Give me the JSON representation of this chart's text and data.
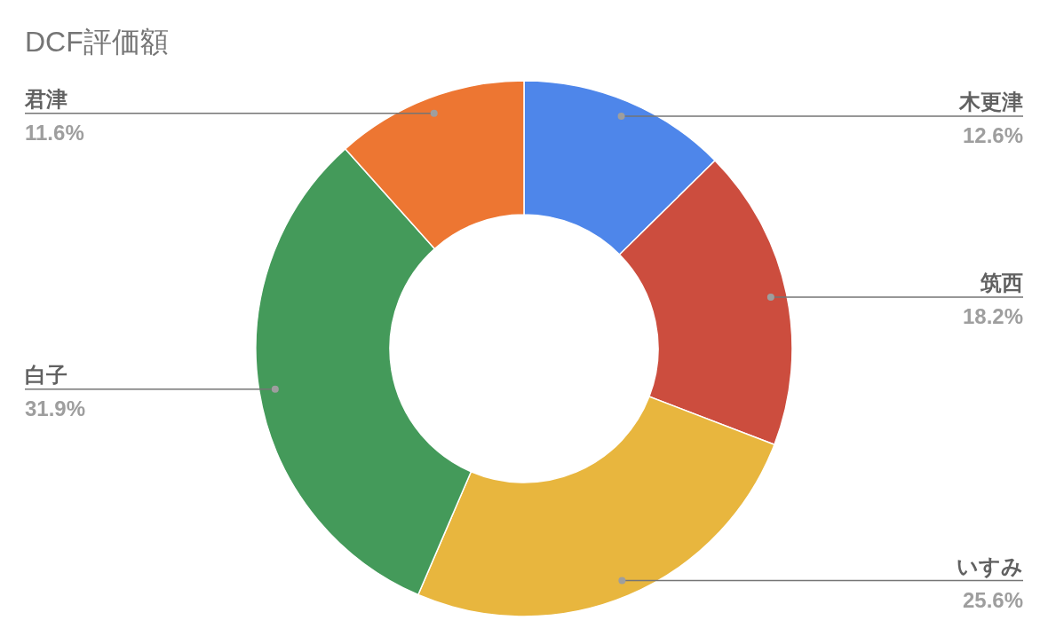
{
  "chart_data": {
    "type": "donut",
    "title": "DCF評価額",
    "categories": [
      "木更津",
      "筑西",
      "いすみ",
      "白子",
      "君津"
    ],
    "values": [
      12.6,
      18.2,
      25.6,
      31.9,
      11.6
    ],
    "value_labels": [
      "12.6%",
      "18.2%",
      "25.6%",
      "31.9%",
      "11.6%"
    ],
    "colors": [
      "#4e86ea",
      "#cc4d3e",
      "#e8b63e",
      "#449a5a",
      "#ed7632"
    ]
  }
}
